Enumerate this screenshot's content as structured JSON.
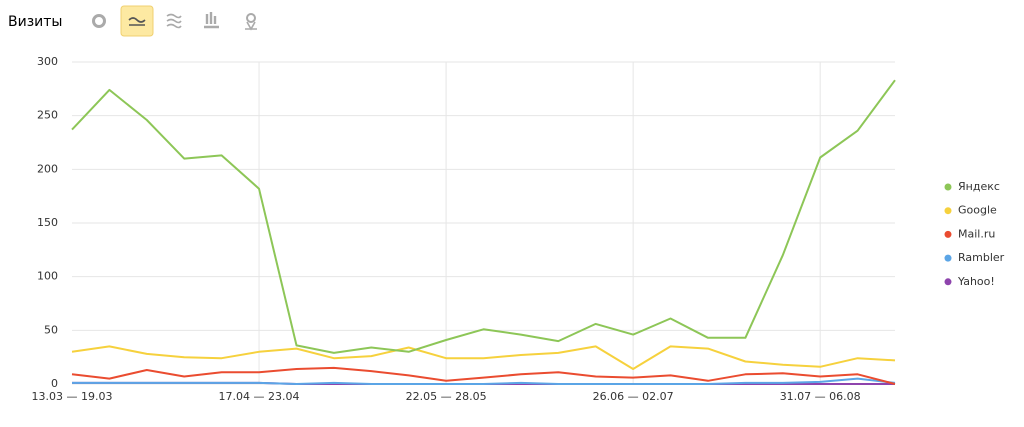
{
  "chart_data": {
    "type": "line",
    "title": "Визиты",
    "categories": [
      "13.03 — 19.03",
      null,
      null,
      null,
      null,
      "17.04 — 23.04",
      null,
      null,
      null,
      null,
      "22.05 — 28.05",
      null,
      null,
      null,
      null,
      "26.06 — 02.07",
      null,
      null,
      null,
      null,
      "31.07 — 06.08",
      null,
      null
    ],
    "series": [
      {
        "name": "Яндекс",
        "color": "#8dc657",
        "values": [
          237,
          274,
          246,
          210,
          213,
          182,
          36,
          29,
          34,
          30,
          41,
          51,
          46,
          40,
          56,
          46,
          61,
          43,
          43,
          120,
          211,
          236,
          283
        ]
      },
      {
        "name": "Google",
        "color": "#f6d13d",
        "values": [
          30,
          35,
          28,
          25,
          24,
          30,
          33,
          24,
          26,
          34,
          24,
          24,
          27,
          29,
          35,
          14,
          35,
          33,
          21,
          18,
          16,
          24,
          22
        ]
      },
      {
        "name": "Mail.ru",
        "color": "#ea4c30",
        "values": [
          9,
          5,
          13,
          7,
          11,
          11,
          14,
          15,
          12,
          8,
          3,
          6,
          9,
          11,
          7,
          6,
          8,
          3,
          9,
          10,
          7,
          9,
          0
        ]
      },
      {
        "name": "Rambler",
        "color": "#5ba5e6",
        "values": [
          1,
          1,
          1,
          1,
          1,
          1,
          0,
          1,
          0,
          0,
          0,
          0,
          1,
          0,
          0,
          0,
          0,
          0,
          1,
          1,
          2,
          5,
          1
        ]
      },
      {
        "name": "Yahoo!",
        "color": "#8e44ad",
        "values": [
          1,
          1,
          1,
          1,
          1,
          1,
          0,
          0,
          0,
          0,
          0,
          0,
          0,
          0,
          0,
          0,
          0,
          0,
          0,
          0,
          0,
          0,
          0
        ]
      }
    ],
    "ylim": [
      0,
      300
    ],
    "yticks": [
      0,
      50,
      100,
      150,
      200,
      250,
      300
    ],
    "grid": true,
    "legend": "right"
  }
}
